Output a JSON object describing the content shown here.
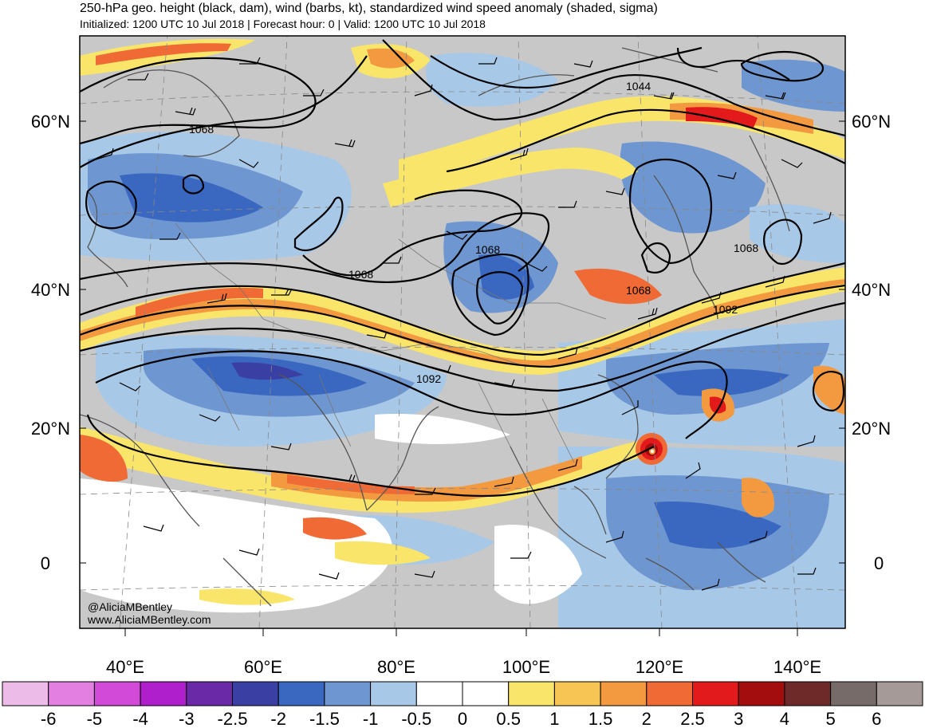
{
  "header": {
    "title": "250-hPa geo. height (black, dam), wind (barbs, kt), standardized wind speed anomaly (shaded, sigma)",
    "subtitle": "Initialized: 1200 UTC 10 Jul 2018 | Forecast hour: 0 | Valid: 1200 UTC 10 Jul 2018"
  },
  "axes": {
    "lat_labels": [
      "60°N",
      "40°N",
      "20°N",
      "0"
    ],
    "lon_labels": [
      "40°E",
      "60°E",
      "80°E",
      "100°E",
      "120°E",
      "140°E"
    ]
  },
  "contour_labels": [
    "1068",
    "1044",
    "1068",
    "1068",
    "1068",
    "1068",
    "1092",
    "1092"
  ],
  "credit": {
    "handle": "@AliciaMBentley",
    "site": "www.AliciaMBentley.com"
  },
  "colorbar": {
    "labels": [
      "-6",
      "-5",
      "-4",
      "-3",
      "-2.5",
      "-2",
      "-1.5",
      "-1",
      "-0.5",
      "0",
      "0.5",
      "1",
      "1.5",
      "2",
      "2.5",
      "3",
      "4",
      "5",
      "6"
    ],
    "colors": [
      "#ecbbe8",
      "#e37fe1",
      "#d24ad8",
      "#b01fcc",
      "#6a2aa7",
      "#3a3fa3",
      "#3a68c0",
      "#6e96d0",
      "#a8c8e8",
      "#ffffff",
      "#ffffff",
      "#f9e56a",
      "#f6c554",
      "#f39a41",
      "#ef6a34",
      "#e31a1c",
      "#a30d0d",
      "#6e2a28",
      "#776b69",
      "#a69a99"
    ]
  },
  "palette": {
    "land_gray": "#c8c8c8",
    "blue_med": "#3a68c0",
    "blue_light": "#a8c8e8",
    "yellow": "#f9e56a",
    "orange": "#f39a41",
    "red": "#e31a1c"
  }
}
